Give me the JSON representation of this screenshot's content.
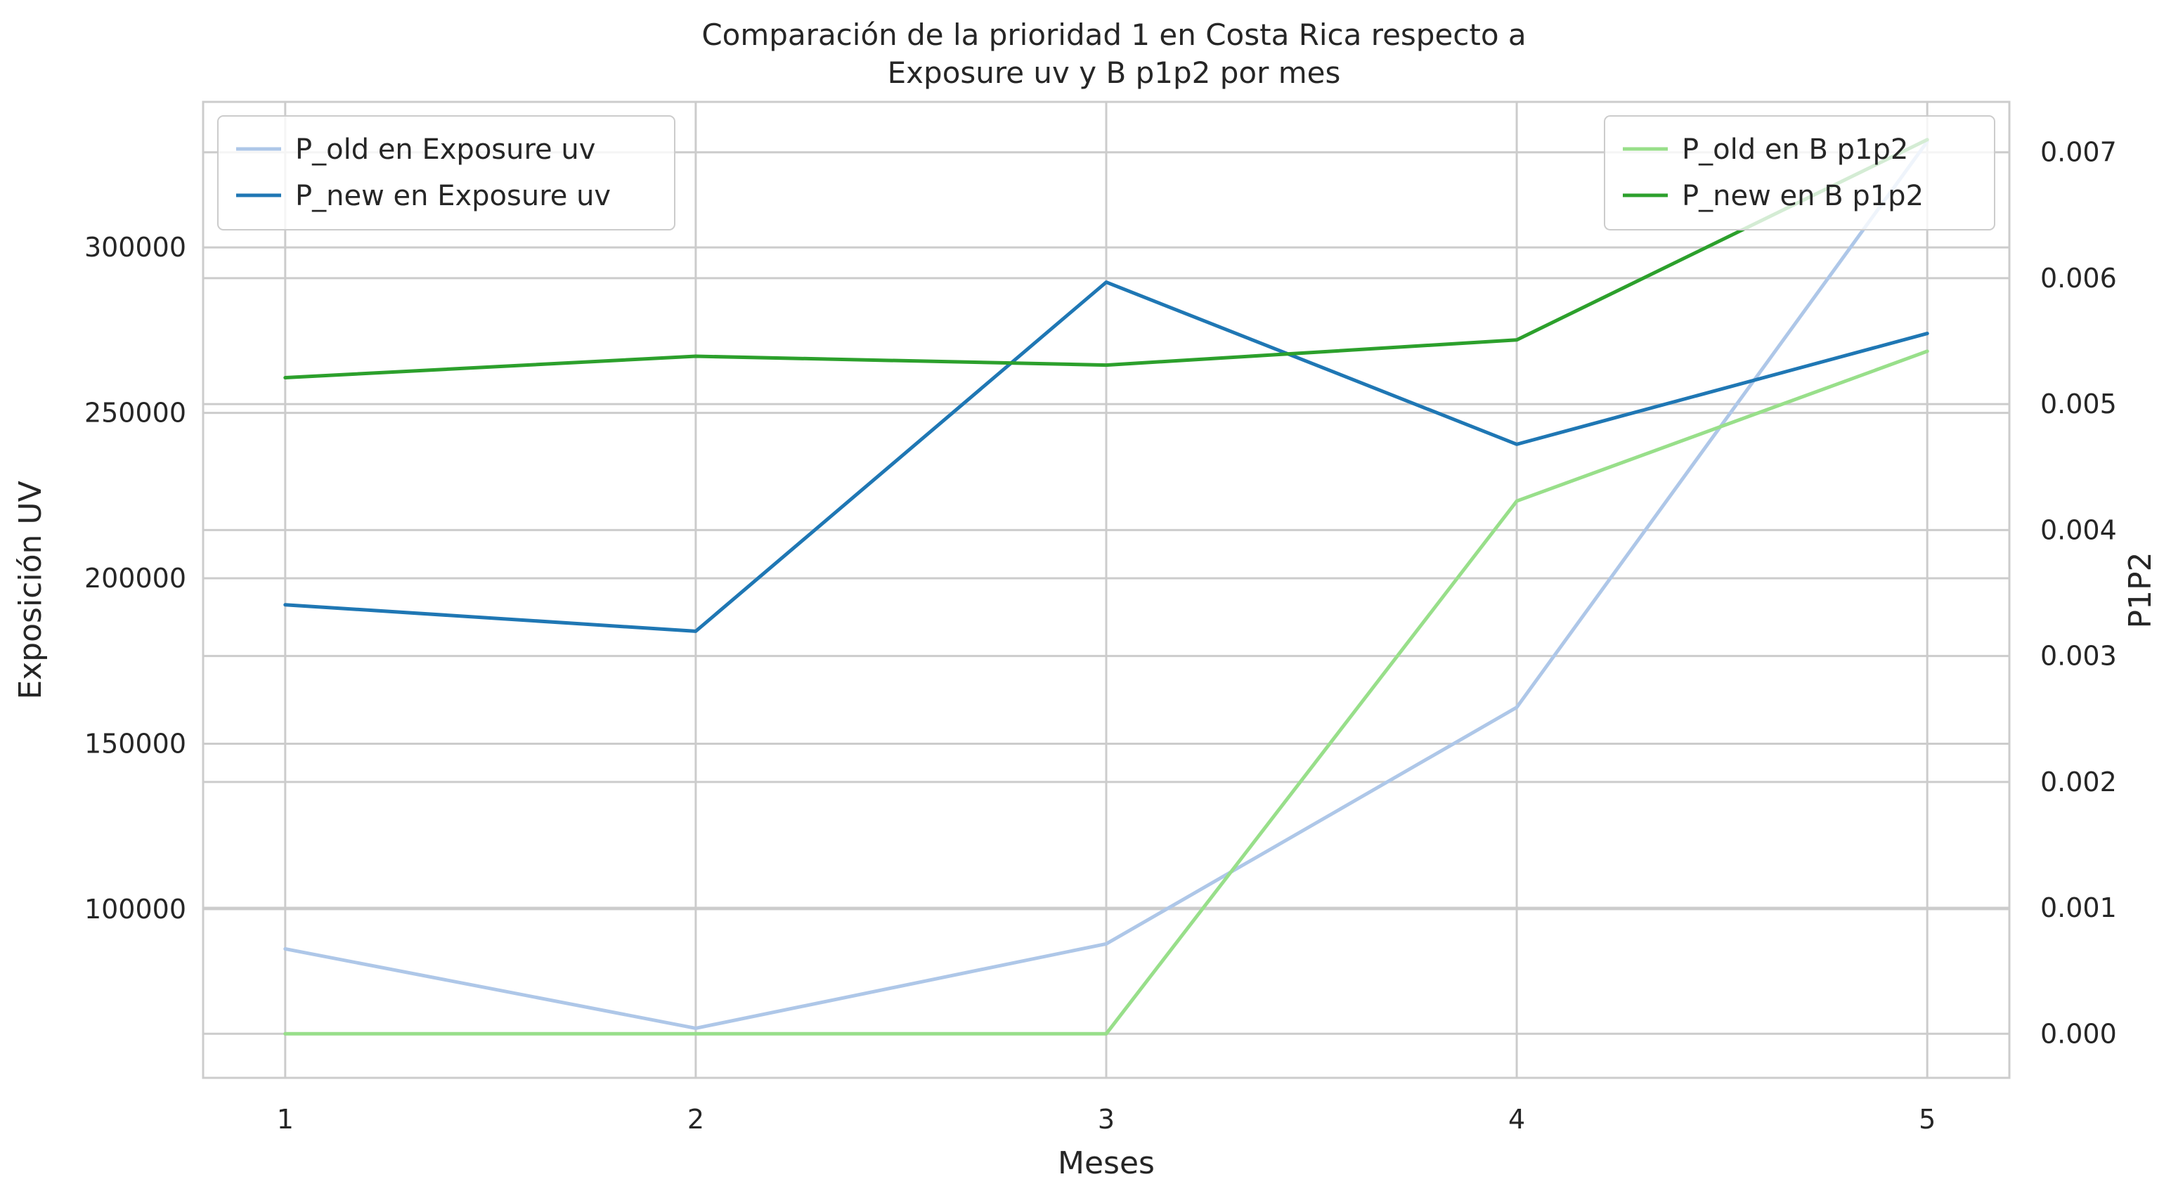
{
  "chart_data": {
    "type": "line",
    "title_lines": [
      "Comparación de la prioridad 1 en Costa Rica respecto a",
      "Exposure uv y B p1p2 por mes"
    ],
    "xlabel": "Meses",
    "ylabel_left": "Exposición UV",
    "ylabel_right": "P1P2",
    "x": [
      1,
      2,
      3,
      4,
      5
    ],
    "x_ticks": [
      "1",
      "2",
      "3",
      "4",
      "5"
    ],
    "xlim": [
      0.8,
      5.2
    ],
    "ylim_left": [
      49000,
      344000
    ],
    "yticks_left": [
      100000,
      150000,
      200000,
      250000,
      300000
    ],
    "ylim_right": [
      -0.00035,
      0.0074
    ],
    "yticks_right": [
      0.0,
      0.001,
      0.002,
      0.003,
      0.004,
      0.005,
      0.006,
      0.007
    ],
    "yticks_right_labels": [
      "0.000",
      "0.001",
      "0.002",
      "0.003",
      "0.004",
      "0.005",
      "0.006",
      "0.007"
    ],
    "grid": true,
    "series_left": [
      {
        "name": "P_old en Exposure uv",
        "color": "#aec7e8",
        "values": [
          88000,
          64000,
          89500,
          161000,
          332000
        ]
      },
      {
        "name": "P_new en Exposure uv",
        "color": "#1f77b4",
        "values": [
          192000,
          184000,
          289500,
          240500,
          274000
        ]
      }
    ],
    "series_right": [
      {
        "name": "P_old en B p1p2",
        "color": "#98df8a",
        "values": [
          0.0,
          0.0,
          0.0,
          0.00423,
          0.00542
        ]
      },
      {
        "name": "P_new en B p1p2",
        "color": "#2ca02c",
        "values": [
          0.00521,
          0.00538,
          0.00531,
          0.00551,
          0.0071
        ]
      }
    ],
    "legend_left_position": "upper-left",
    "legend_right_position": "upper-right"
  }
}
